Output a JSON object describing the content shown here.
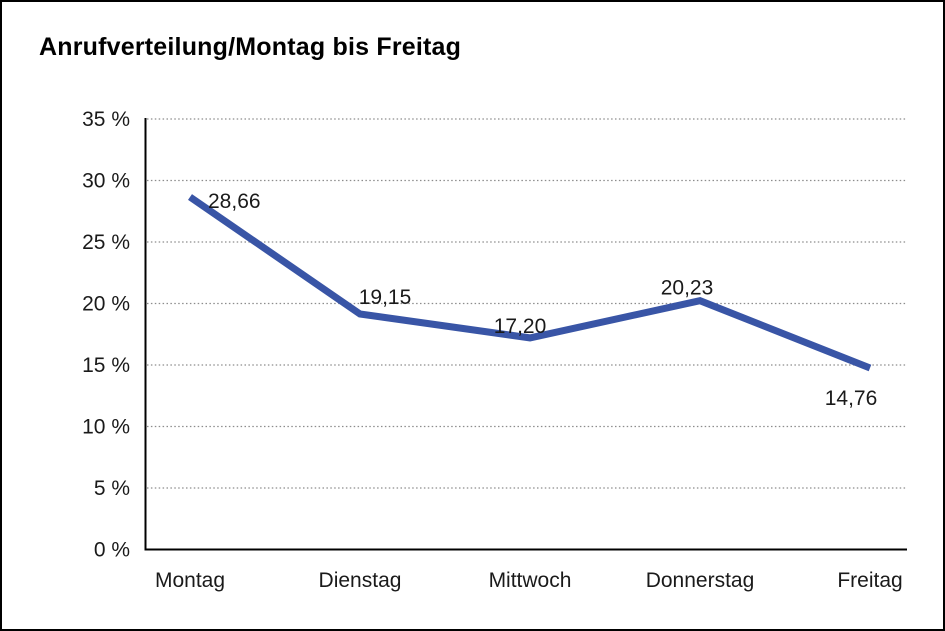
{
  "page": {
    "title": "Anrufverteilung/Montag bis Freitag"
  },
  "chart_data": {
    "type": "line",
    "title": "Anrufverteilung/Montag bis Freitag",
    "categories": [
      "Montag",
      "Dienstag",
      "Mittwoch",
      "Donnerstag",
      "Freitag"
    ],
    "series": [
      {
        "name": "Anrufverteilung",
        "values": [
          28.66,
          19.15,
          17.2,
          20.23,
          14.76
        ],
        "value_labels": [
          "28,66",
          "19,15",
          "17,20",
          "20,23",
          "14,76"
        ],
        "color": "#3955A6"
      }
    ],
    "xlabel": "",
    "ylabel": "",
    "ylim": [
      0,
      35
    ],
    "y_ticks": [
      {
        "value": 0,
        "label": "0 %"
      },
      {
        "value": 5,
        "label": "5 %"
      },
      {
        "value": 10,
        "label": "10 %"
      },
      {
        "value": 15,
        "label": "15 %"
      },
      {
        "value": 20,
        "label": "20 %"
      },
      {
        "value": 25,
        "label": "25 %"
      },
      {
        "value": 30,
        "label": "30 %"
      },
      {
        "value": 35,
        "label": "35 %"
      }
    ],
    "grid": "horizontal-dotted",
    "legend": "none",
    "data_labels": true
  },
  "colors": {
    "line": "#3955A6",
    "grid": "#8C8C8C",
    "axis": "#000000",
    "text": "#1A1A1A",
    "background": "#FFFFFF",
    "frame_border": "#000000"
  }
}
